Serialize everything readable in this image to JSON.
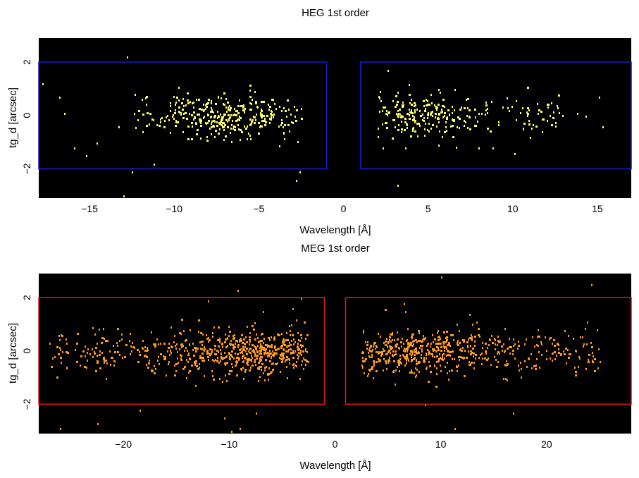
{
  "chart_data": [
    {
      "type": "scatter",
      "title": "HEG 1st order",
      "xlabel": "Wavelength [Å]",
      "ylabel": "tg_d [arcsec]",
      "xlim": [
        -18,
        17
      ],
      "ylim": [
        -3.1,
        2.9
      ],
      "xticks": [
        -15,
        -10,
        -5,
        0,
        5,
        10,
        15
      ],
      "xtick_labels": [
        "−15",
        "−10",
        "−5",
        "0",
        "5",
        "10",
        "15"
      ],
      "yticks": [
        -2,
        0,
        2
      ],
      "ytick_labels": [
        "−2",
        "0",
        "2"
      ],
      "background": "#000000",
      "point_color": "#ffff66",
      "box_color": "#1a1acc",
      "boxes": [
        {
          "x0": -18,
          "x1": -1,
          "y0": -2,
          "y1": 2
        },
        {
          "x0": 1,
          "x1": 17,
          "y0": -2,
          "y1": 2
        }
      ],
      "clusters": [
        {
          "x": [
            -12.5,
            -2.5
          ],
          "peak": -7,
          "n": 340
        },
        {
          "x": [
            2,
            13
          ],
          "peak": 4,
          "n": 300
        }
      ],
      "outliers": [
        [
          -17.8,
          1.2
        ],
        [
          -16.8,
          0.7
        ],
        [
          -16.5,
          0.1
        ],
        [
          -15.9,
          -1.2
        ],
        [
          -15.2,
          -1.5
        ],
        [
          -14.6,
          -1.0
        ],
        [
          -13.3,
          -0.4
        ],
        [
          -12.8,
          2.2
        ],
        [
          -12.5,
          -2.1
        ],
        [
          -13.0,
          -3.0
        ],
        [
          -11.2,
          -1.8
        ],
        [
          -2.6,
          -2.1
        ],
        [
          -2.8,
          -2.4
        ],
        [
          2.6,
          1.7
        ],
        [
          3.2,
          -2.6
        ],
        [
          8.8,
          -1.2
        ],
        [
          11.7,
          -0.6
        ],
        [
          12.6,
          0.4
        ],
        [
          13.8,
          0.1
        ],
        [
          14.3,
          0.0
        ],
        [
          15.1,
          0.7
        ],
        [
          15.3,
          -0.4
        ],
        [
          10.1,
          -1.4
        ],
        [
          2.3,
          -1.2
        ]
      ]
    },
    {
      "type": "scatter",
      "title": "MEG 1st order",
      "xlabel": "Wavelength [Å]",
      "ylabel": "tg_d [arcsec]",
      "xlim": [
        -28,
        28
      ],
      "ylim": [
        -3.1,
        2.9
      ],
      "xticks": [
        -20,
        -10,
        0,
        10,
        20
      ],
      "xtick_labels": [
        "−20",
        "−10",
        "0",
        "10",
        "20"
      ],
      "yticks": [
        -2,
        0,
        2
      ],
      "ytick_labels": [
        "−2",
        "0",
        "2"
      ],
      "background": "#000000",
      "point_color": "#ff9a1a",
      "box_color": "#e01a1a",
      "boxes": [
        {
          "x0": -28,
          "x1": -1,
          "y0": -2,
          "y1": 2
        },
        {
          "x0": 1,
          "x1": 28,
          "y0": -2,
          "y1": 2
        }
      ],
      "clusters": [
        {
          "x": [
            -27,
            -2.5
          ],
          "peak": -8,
          "n": 720
        },
        {
          "x": [
            2.5,
            25
          ],
          "peak": 7,
          "n": 650
        }
      ],
      "outliers": [
        [
          -26.0,
          -2.9
        ],
        [
          -22.5,
          -2.7
        ],
        [
          -18.5,
          -2.2
        ],
        [
          -10.5,
          -2.5
        ],
        [
          -9.8,
          -3.0
        ],
        [
          -9.0,
          -2.9
        ],
        [
          -7.5,
          -2.3
        ],
        [
          -9.2,
          2.3
        ],
        [
          -12.0,
          1.9
        ],
        [
          -6.8,
          1.5
        ],
        [
          -4.0,
          1.6
        ],
        [
          -3.2,
          2.0
        ],
        [
          11.3,
          -2.9
        ],
        [
          8.5,
          -2.0
        ],
        [
          15.9,
          -1.0
        ],
        [
          18.8,
          0.2
        ],
        [
          19.3,
          -0.6
        ],
        [
          22.5,
          0.5
        ],
        [
          23.8,
          1.1
        ],
        [
          24.2,
          2.5
        ],
        [
          21.3,
          -0.1
        ],
        [
          10.0,
          2.8
        ],
        [
          6.5,
          1.8
        ],
        [
          16.8,
          -2.3
        ]
      ]
    }
  ]
}
